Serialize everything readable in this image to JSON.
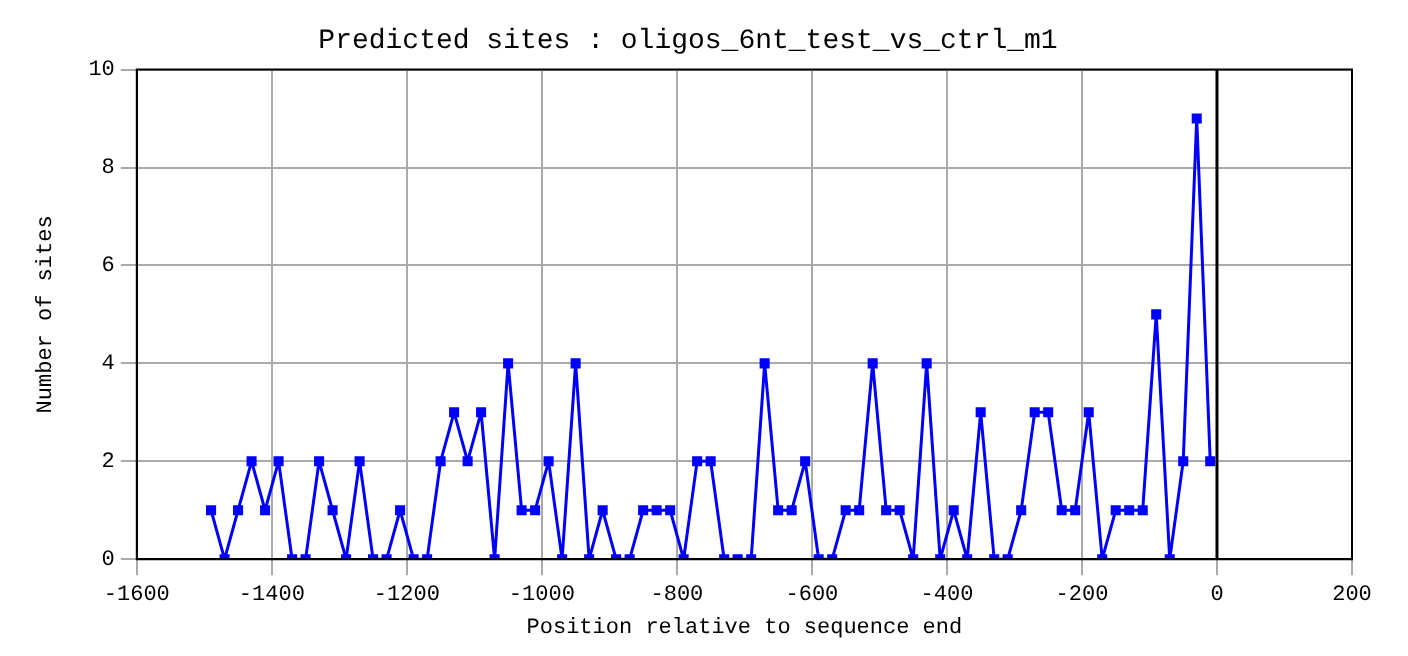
{
  "chart_data": {
    "type": "line",
    "title": "Predicted sites : oligos_6nt_test_vs_ctrl_m1",
    "xlabel": "Position relative to sequence end",
    "ylabel": "Number of sites",
    "x": [
      -1490,
      -1470,
      -1450,
      -1430,
      -1410,
      -1390,
      -1370,
      -1350,
      -1330,
      -1310,
      -1290,
      -1270,
      -1250,
      -1230,
      -1210,
      -1190,
      -1170,
      -1150,
      -1130,
      -1110,
      -1090,
      -1070,
      -1050,
      -1030,
      -1010,
      -990,
      -970,
      -950,
      -930,
      -910,
      -890,
      -870,
      -850,
      -830,
      -810,
      -790,
      -770,
      -750,
      -730,
      -710,
      -690,
      -670,
      -650,
      -630,
      -610,
      -590,
      -570,
      -550,
      -530,
      -510,
      -490,
      -470,
      -450,
      -430,
      -410,
      -390,
      -370,
      -350,
      -330,
      -310,
      -290,
      -270,
      -250,
      -230,
      -210,
      -190,
      -170,
      -150,
      -130,
      -110,
      -90,
      -70,
      -50,
      -30,
      -10
    ],
    "series": [
      {
        "color": "#0000ff",
        "values": [
          1,
          0,
          1,
          2,
          1,
          2,
          0,
          0,
          2,
          1,
          0,
          2,
          0,
          0,
          1,
          0,
          0,
          2,
          3,
          2,
          3,
          0,
          4,
          1,
          1,
          2,
          0,
          4,
          0,
          1,
          0,
          0,
          1,
          1,
          1,
          0,
          2,
          2,
          0,
          0,
          0,
          4,
          1,
          1,
          2,
          0,
          0,
          1,
          1,
          4,
          1,
          1,
          0,
          4,
          0,
          1,
          0,
          3,
          0,
          0,
          1,
          3,
          3,
          1,
          1,
          3,
          0,
          1,
          1,
          1,
          5,
          0,
          2,
          9,
          2
        ]
      }
    ],
    "xlim": [
      -1600,
      200
    ],
    "xticks": [
      -1600,
      -1400,
      -1200,
      -1000,
      -800,
      -600,
      -400,
      -200,
      0,
      200
    ],
    "ylim": [
      0,
      10
    ],
    "yticks": [
      0,
      2,
      4,
      6,
      8,
      10
    ],
    "ref_lines": [
      {
        "axis": "x",
        "value": 0,
        "color": "#000000"
      }
    ],
    "grid": true,
    "marker": "square",
    "line_style": "solid",
    "legend": false
  }
}
